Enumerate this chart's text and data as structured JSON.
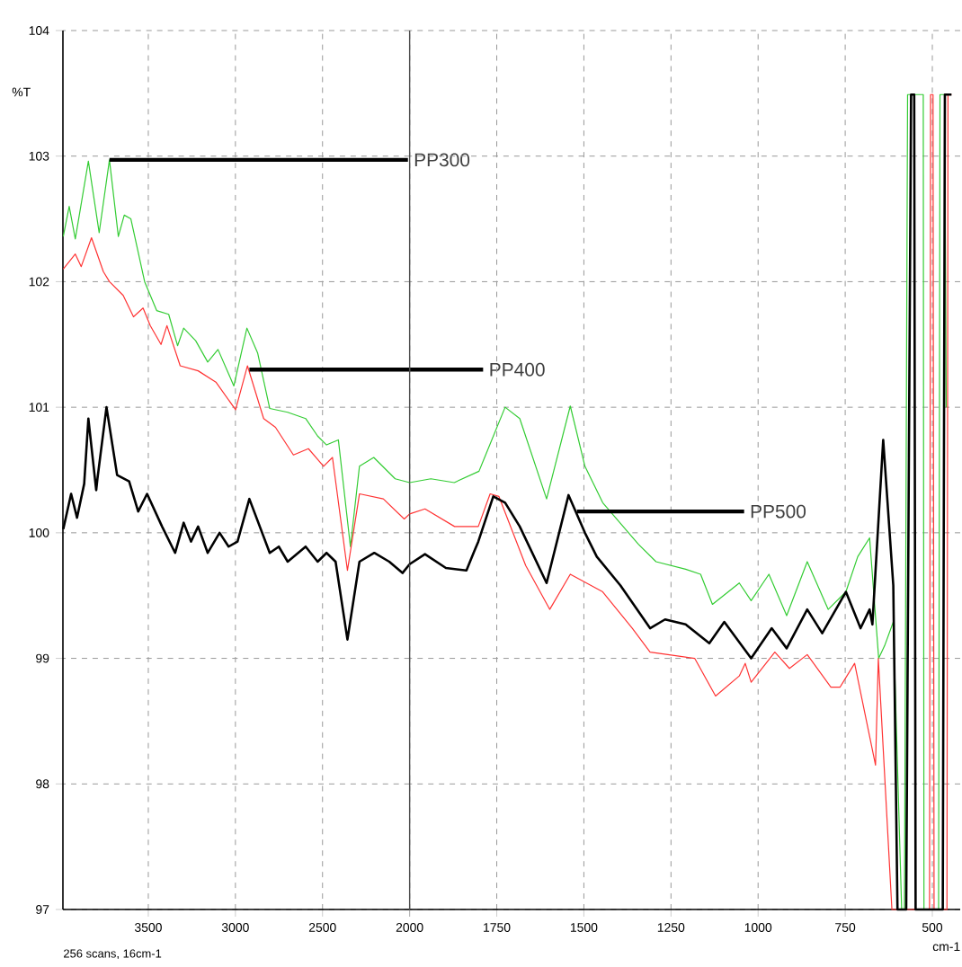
{
  "chart_data": [
    {
      "type": "line",
      "ylabel": "%T",
      "xlim": [
        3990,
        2000
      ],
      "ylim": [
        97,
        104
      ],
      "xticks": [
        3500,
        3000,
        2500,
        2000
      ],
      "yticks": [
        97,
        98,
        99,
        100,
        101,
        102,
        103,
        104
      ],
      "grid": true,
      "marker": "none",
      "line_style": "solid",
      "annotations": [
        {
          "text": "PP300",
          "x": 3723,
          "y": 102.97
        },
        {
          "text": "PP400",
          "x": 2920,
          "y": 101.3
        },
        "256 scans, 16cm-1"
      ],
      "series": [
        {
          "color": "#33cc33",
          "x": [
            3988,
            3954,
            3919,
            3844,
            3782,
            3723,
            3672,
            3638,
            3600,
            3521,
            3452,
            3383,
            3332,
            3297,
            3228,
            3159,
            3100,
            3009,
            2934,
            2872,
            2803,
            2700,
            2597,
            2528,
            2477,
            2409,
            2340,
            2288,
            2206,
            2083,
            2000
          ],
          "values": [
            102.36,
            102.6,
            102.34,
            102.96,
            102.39,
            102.97,
            102.36,
            102.53,
            102.5,
            102.0,
            101.77,
            101.74,
            101.49,
            101.63,
            101.53,
            101.36,
            101.46,
            101.17,
            101.63,
            101.43,
            100.99,
            100.96,
            100.91,
            100.77,
            100.7,
            100.74,
            99.89,
            100.53,
            100.6,
            100.43,
            100.4
          ]
        },
        {
          "color": "#ff3333",
          "x": [
            3988,
            3919,
            3885,
            3826,
            3758,
            3723,
            3644,
            3585,
            3530,
            3489,
            3427,
            3393,
            3317,
            3214,
            3112,
            2999,
            2931,
            2838,
            2770,
            2667,
            2581,
            2494,
            2443,
            2357,
            2288,
            2151,
            2031,
            2000
          ],
          "values": [
            102.1,
            102.22,
            102.12,
            102.35,
            102.08,
            102.0,
            101.89,
            101.72,
            101.79,
            101.65,
            101.5,
            101.65,
            101.33,
            101.29,
            101.2,
            100.98,
            101.33,
            100.91,
            100.84,
            100.62,
            100.67,
            100.53,
            100.6,
            99.7,
            100.31,
            100.27,
            100.11,
            100.15
          ]
        },
        {
          "color": "#000000",
          "x": [
            3988,
            3943,
            3909,
            3868,
            3844,
            3799,
            3792,
            3740,
            3679,
            3610,
            3558,
            3507,
            3421,
            3346,
            3297,
            3255,
            3214,
            3159,
            3091,
            3039,
            2988,
            2920,
            2803,
            2751,
            2700,
            2597,
            2528,
            2477,
            2425,
            2357,
            2288,
            2203,
            2117,
            2041,
            2000
          ],
          "values": [
            100.03,
            100.31,
            100.12,
            100.39,
            100.91,
            100.34,
            100.43,
            101.0,
            100.46,
            100.41,
            100.17,
            100.31,
            100.05,
            99.84,
            100.08,
            99.93,
            100.05,
            99.84,
            100.0,
            99.89,
            99.93,
            100.27,
            99.84,
            99.89,
            99.77,
            99.89,
            99.77,
            99.84,
            99.77,
            99.15,
            99.77,
            99.84,
            99.77,
            99.68,
            99.75
          ]
        }
      ]
    },
    {
      "type": "line",
      "xlabel": "cm-1",
      "xlim": [
        2000,
        420
      ],
      "ylim": [
        97,
        104
      ],
      "xticks": [
        {
          "value": 2000,
          "label": null
        },
        1750,
        1500,
        1250,
        1000,
        750,
        500
      ],
      "yticks": [
        97,
        98,
        99,
        100,
        101,
        102,
        103,
        104
      ],
      "tick_labels": "x",
      "grid": true,
      "marker": "none",
      "line_style": "solid",
      "annotations": [
        {
          "text": "PP500",
          "x": 1520,
          "y": 100.17
        }
      ],
      "series": [
        {
          "color": "#33cc33",
          "x": [
            2000,
            1939,
            1872,
            1801,
            1726,
            1684,
            1607,
            1539,
            1497,
            1446,
            1344,
            1293,
            1208,
            1165,
            1131,
            1054,
            1020,
            969,
            918,
            859,
            799,
            748,
            714,
            680,
            654,
            637,
            612,
            588,
            580,
            571,
            560,
            526,
            524,
            482,
            478,
            465,
            460
          ],
          "values": [
            100.4,
            100.43,
            100.4,
            100.49,
            101.0,
            100.91,
            100.27,
            101.01,
            100.53,
            100.24,
            99.91,
            99.77,
            99.71,
            99.67,
            99.43,
            99.6,
            99.46,
            99.67,
            99.34,
            99.77,
            99.39,
            99.53,
            99.81,
            99.96,
            99.0,
            99.1,
            99.29,
            97.0,
            97.0,
            103.49,
            103.49,
            103.49,
            97.0,
            97.0,
            103.49,
            103.49,
            101.0
          ]
        },
        {
          "color": "#ff3333",
          "x": [
            2000,
            1956,
            1871,
            1803,
            1769,
            1744,
            1667,
            1598,
            1539,
            1446,
            1361,
            1310,
            1259,
            1182,
            1122,
            1054,
            1037,
            1020,
            952,
            910,
            859,
            791,
            765,
            723,
            663,
            655,
            616,
            600,
            508,
            505,
            498,
            495,
            458,
            455,
            445
          ],
          "values": [
            100.15,
            100.19,
            100.05,
            100.05,
            100.31,
            100.29,
            99.74,
            99.39,
            99.67,
            99.53,
            99.24,
            99.05,
            99.03,
            99.0,
            98.7,
            98.86,
            98.96,
            98.81,
            99.05,
            98.92,
            99.03,
            98.77,
            98.77,
            98.96,
            98.15,
            99.0,
            97.0,
            97.0,
            97.0,
            103.49,
            103.49,
            97.0,
            97.0,
            103.49,
            103.49
          ]
        },
        {
          "color": "#000000",
          "x": [
            2000,
            1956,
            1896,
            1837,
            1815,
            1803,
            1760,
            1726,
            1684,
            1607,
            1544,
            1497,
            1463,
            1395,
            1310,
            1267,
            1208,
            1140,
            1097,
            1020,
            961,
            918,
            859,
            816,
            748,
            706,
            680,
            672,
            641,
            612,
            600,
            575,
            561,
            552,
            548,
            470,
            464,
            445
          ],
          "values": [
            99.75,
            99.83,
            99.72,
            99.7,
            99.85,
            99.93,
            100.29,
            100.24,
            100.05,
            99.6,
            100.3,
            100.0,
            99.81,
            99.58,
            99.24,
            99.31,
            99.27,
            99.12,
            99.29,
            99.0,
            99.24,
            99.08,
            99.39,
            99.2,
            99.53,
            99.24,
            99.39,
            99.27,
            100.74,
            99.58,
            97.0,
            97.0,
            103.49,
            103.49,
            97.0,
            97.0,
            103.49,
            103.49
          ]
        }
      ]
    }
  ]
}
